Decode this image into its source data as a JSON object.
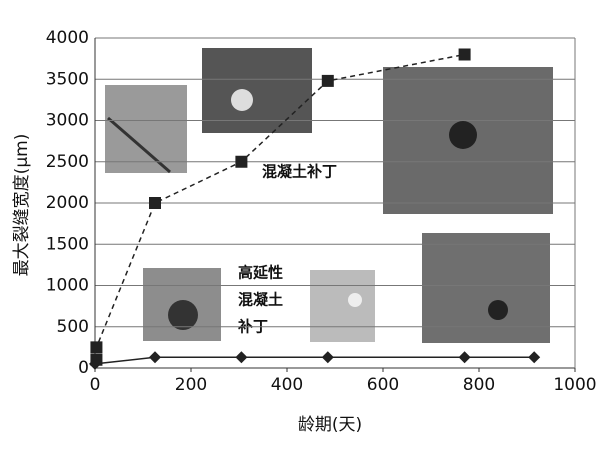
{
  "chart_data": {
    "type": "scatter",
    "x_label": "龄期(天)",
    "y_label": "最大裂缝宽度(μm)",
    "xlim": [
      0,
      1000
    ],
    "xticks": [
      0,
      200,
      400,
      600,
      800,
      1000
    ],
    "ylim": [
      0,
      4000
    ],
    "yticks": [
      0,
      500,
      1000,
      1500,
      2000,
      2500,
      3000,
      3500,
      4000
    ],
    "grid": true,
    "series": [
      {
        "color": "#222222",
        "marker": "square",
        "line": "dashed",
        "x": [
          3,
          3,
          125,
          305,
          485,
          770
        ],
        "values": [
          100,
          250,
          2000,
          2500,
          3480,
          3800
        ]
      },
      {
        "color": "#222222",
        "marker": "diamond",
        "line": "solid",
        "x": [
          0,
          125,
          305,
          485,
          770,
          915
        ],
        "values": [
          50,
          130,
          130,
          130,
          130,
          130
        ]
      }
    ],
    "annotations": [
      "混凝土补丁",
      "高延性",
      "混凝土",
      "补丁"
    ]
  }
}
